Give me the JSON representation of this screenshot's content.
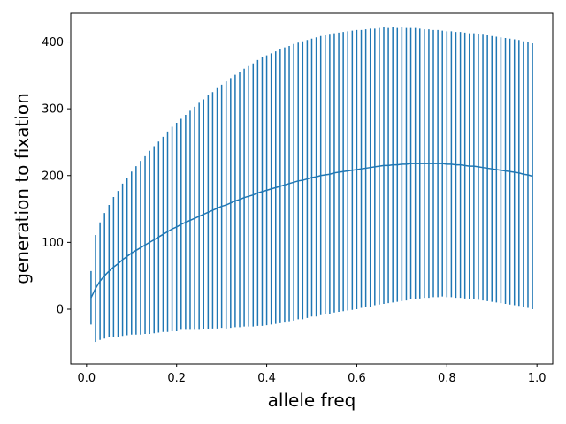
{
  "chart_data": {
    "type": "line",
    "title": "",
    "xlabel": "allele freq",
    "ylabel": "generation to fixation",
    "xlim": [
      -0.035,
      1.035
    ],
    "ylim": [
      -82,
      443
    ],
    "xticks": [
      0.0,
      0.2,
      0.4,
      0.6,
      0.8,
      1.0
    ],
    "xtick_labels": [
      "0.0",
      "0.2",
      "0.4",
      "0.6",
      "0.8",
      "1.0"
    ],
    "yticks": [
      0,
      100,
      200,
      300,
      400
    ],
    "ytick_labels": [
      "0",
      "100",
      "200",
      "300",
      "400"
    ],
    "grid": false,
    "legend": "none",
    "error_bars": "y, symmetric (± std)",
    "color": "#1f77b4",
    "series": [
      {
        "x": [
          0.01,
          0.02,
          0.03,
          0.04,
          0.05,
          0.06,
          0.07,
          0.08,
          0.09,
          0.1,
          0.11,
          0.12,
          0.13,
          0.14,
          0.15,
          0.16,
          0.17,
          0.18,
          0.19,
          0.2,
          0.21,
          0.22,
          0.23,
          0.24,
          0.25,
          0.26,
          0.27,
          0.28,
          0.29,
          0.3,
          0.31,
          0.32,
          0.33,
          0.34,
          0.35,
          0.36,
          0.37,
          0.38,
          0.39,
          0.4,
          0.41,
          0.42,
          0.43,
          0.44,
          0.45,
          0.46,
          0.47,
          0.48,
          0.49,
          0.5,
          0.51,
          0.52,
          0.53,
          0.54,
          0.55,
          0.56,
          0.57,
          0.58,
          0.59,
          0.6,
          0.61,
          0.62,
          0.63,
          0.64,
          0.65,
          0.66,
          0.67,
          0.68,
          0.69,
          0.7,
          0.71,
          0.72,
          0.73,
          0.74,
          0.75,
          0.76,
          0.77,
          0.78,
          0.79,
          0.8,
          0.81,
          0.82,
          0.83,
          0.84,
          0.85,
          0.86,
          0.87,
          0.88,
          0.89,
          0.9,
          0.91,
          0.92,
          0.93,
          0.94,
          0.95,
          0.96,
          0.97,
          0.98,
          0.99
        ],
        "y": [
          17,
          31,
          42,
          50,
          57,
          63,
          68,
          74,
          79,
          84,
          88,
          92,
          96,
          100,
          104,
          108,
          112,
          116,
          120,
          123,
          127,
          130,
          133,
          136,
          139,
          142,
          145,
          148,
          151,
          154,
          156,
          159,
          162,
          164,
          167,
          169,
          171,
          174,
          176,
          178,
          180,
          182,
          184,
          186,
          188,
          190,
          192,
          193,
          195,
          197,
          198,
          200,
          201,
          202,
          204,
          205,
          206,
          207,
          208,
          209,
          210,
          211,
          212,
          213,
          214,
          215,
          215,
          216,
          216,
          217,
          217,
          218,
          218,
          218,
          218,
          218,
          218,
          218,
          218,
          217,
          217,
          216,
          216,
          215,
          214,
          214,
          213,
          212,
          211,
          210,
          209,
          208,
          207,
          206,
          205,
          204,
          202,
          201,
          199
        ],
        "yerr": [
          40,
          80,
          88,
          94,
          99,
          105,
          109,
          114,
          118,
          122,
          126,
          130,
          133,
          137,
          140,
          143,
          146,
          150,
          153,
          156,
          158,
          161,
          164,
          167,
          170,
          172,
          175,
          177,
          180,
          182,
          185,
          187,
          189,
          191,
          193,
          195,
          197,
          199,
          201,
          202,
          203,
          204,
          205,
          206,
          206,
          207,
          207,
          208,
          208,
          208,
          209,
          209,
          209,
          209,
          209,
          209,
          209,
          209,
          209,
          209,
          208,
          208,
          208,
          207,
          207,
          207,
          206,
          206,
          205,
          205,
          204,
          203,
          203,
          202,
          201,
          201,
          200,
          200,
          199,
          199,
          199,
          199,
          199,
          199,
          199,
          199,
          199,
          199,
          199,
          199,
          199,
          199,
          199,
          199,
          199,
          199,
          199,
          199,
          199
        ]
      }
    ]
  }
}
